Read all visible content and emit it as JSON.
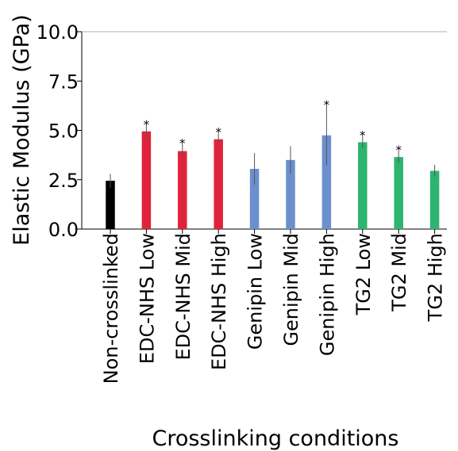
{
  "chart_data": {
    "type": "bar",
    "title": "",
    "xlabel": "Crosslinking conditions",
    "ylabel": "Elastic Modulus (GPa)",
    "ylim": [
      0,
      10
    ],
    "yticks": [
      "0.0",
      "2.5",
      "5.0",
      "7.5",
      "10.0"
    ],
    "ytick_values": [
      0,
      2.5,
      5,
      7.5,
      10
    ],
    "grid": false,
    "significance_marker": "*",
    "categories": [
      "Non-crosslinked",
      "EDC-NHS Low",
      "EDC-NHS Mid",
      "EDC-NHS High",
      "Genipin Low",
      "Genipin Mid",
      "Genipin High",
      "TG2 Low",
      "TG2 Mid",
      "TG2 High"
    ],
    "values": [
      2.45,
      4.95,
      3.95,
      4.55,
      3.05,
      3.5,
      4.75,
      4.4,
      3.65,
      2.95
    ],
    "errors": [
      0.35,
      0.3,
      0.35,
      0.3,
      0.8,
      0.7,
      1.5,
      0.3,
      0.3,
      0.3
    ],
    "significant": [
      false,
      true,
      true,
      true,
      false,
      false,
      true,
      true,
      true,
      false
    ],
    "colors": [
      "#000000",
      "#e0233c",
      "#e0233c",
      "#e0233c",
      "#6c8fce",
      "#6c8fce",
      "#6c8fce",
      "#2db46e",
      "#2db46e",
      "#2db46e"
    ]
  }
}
